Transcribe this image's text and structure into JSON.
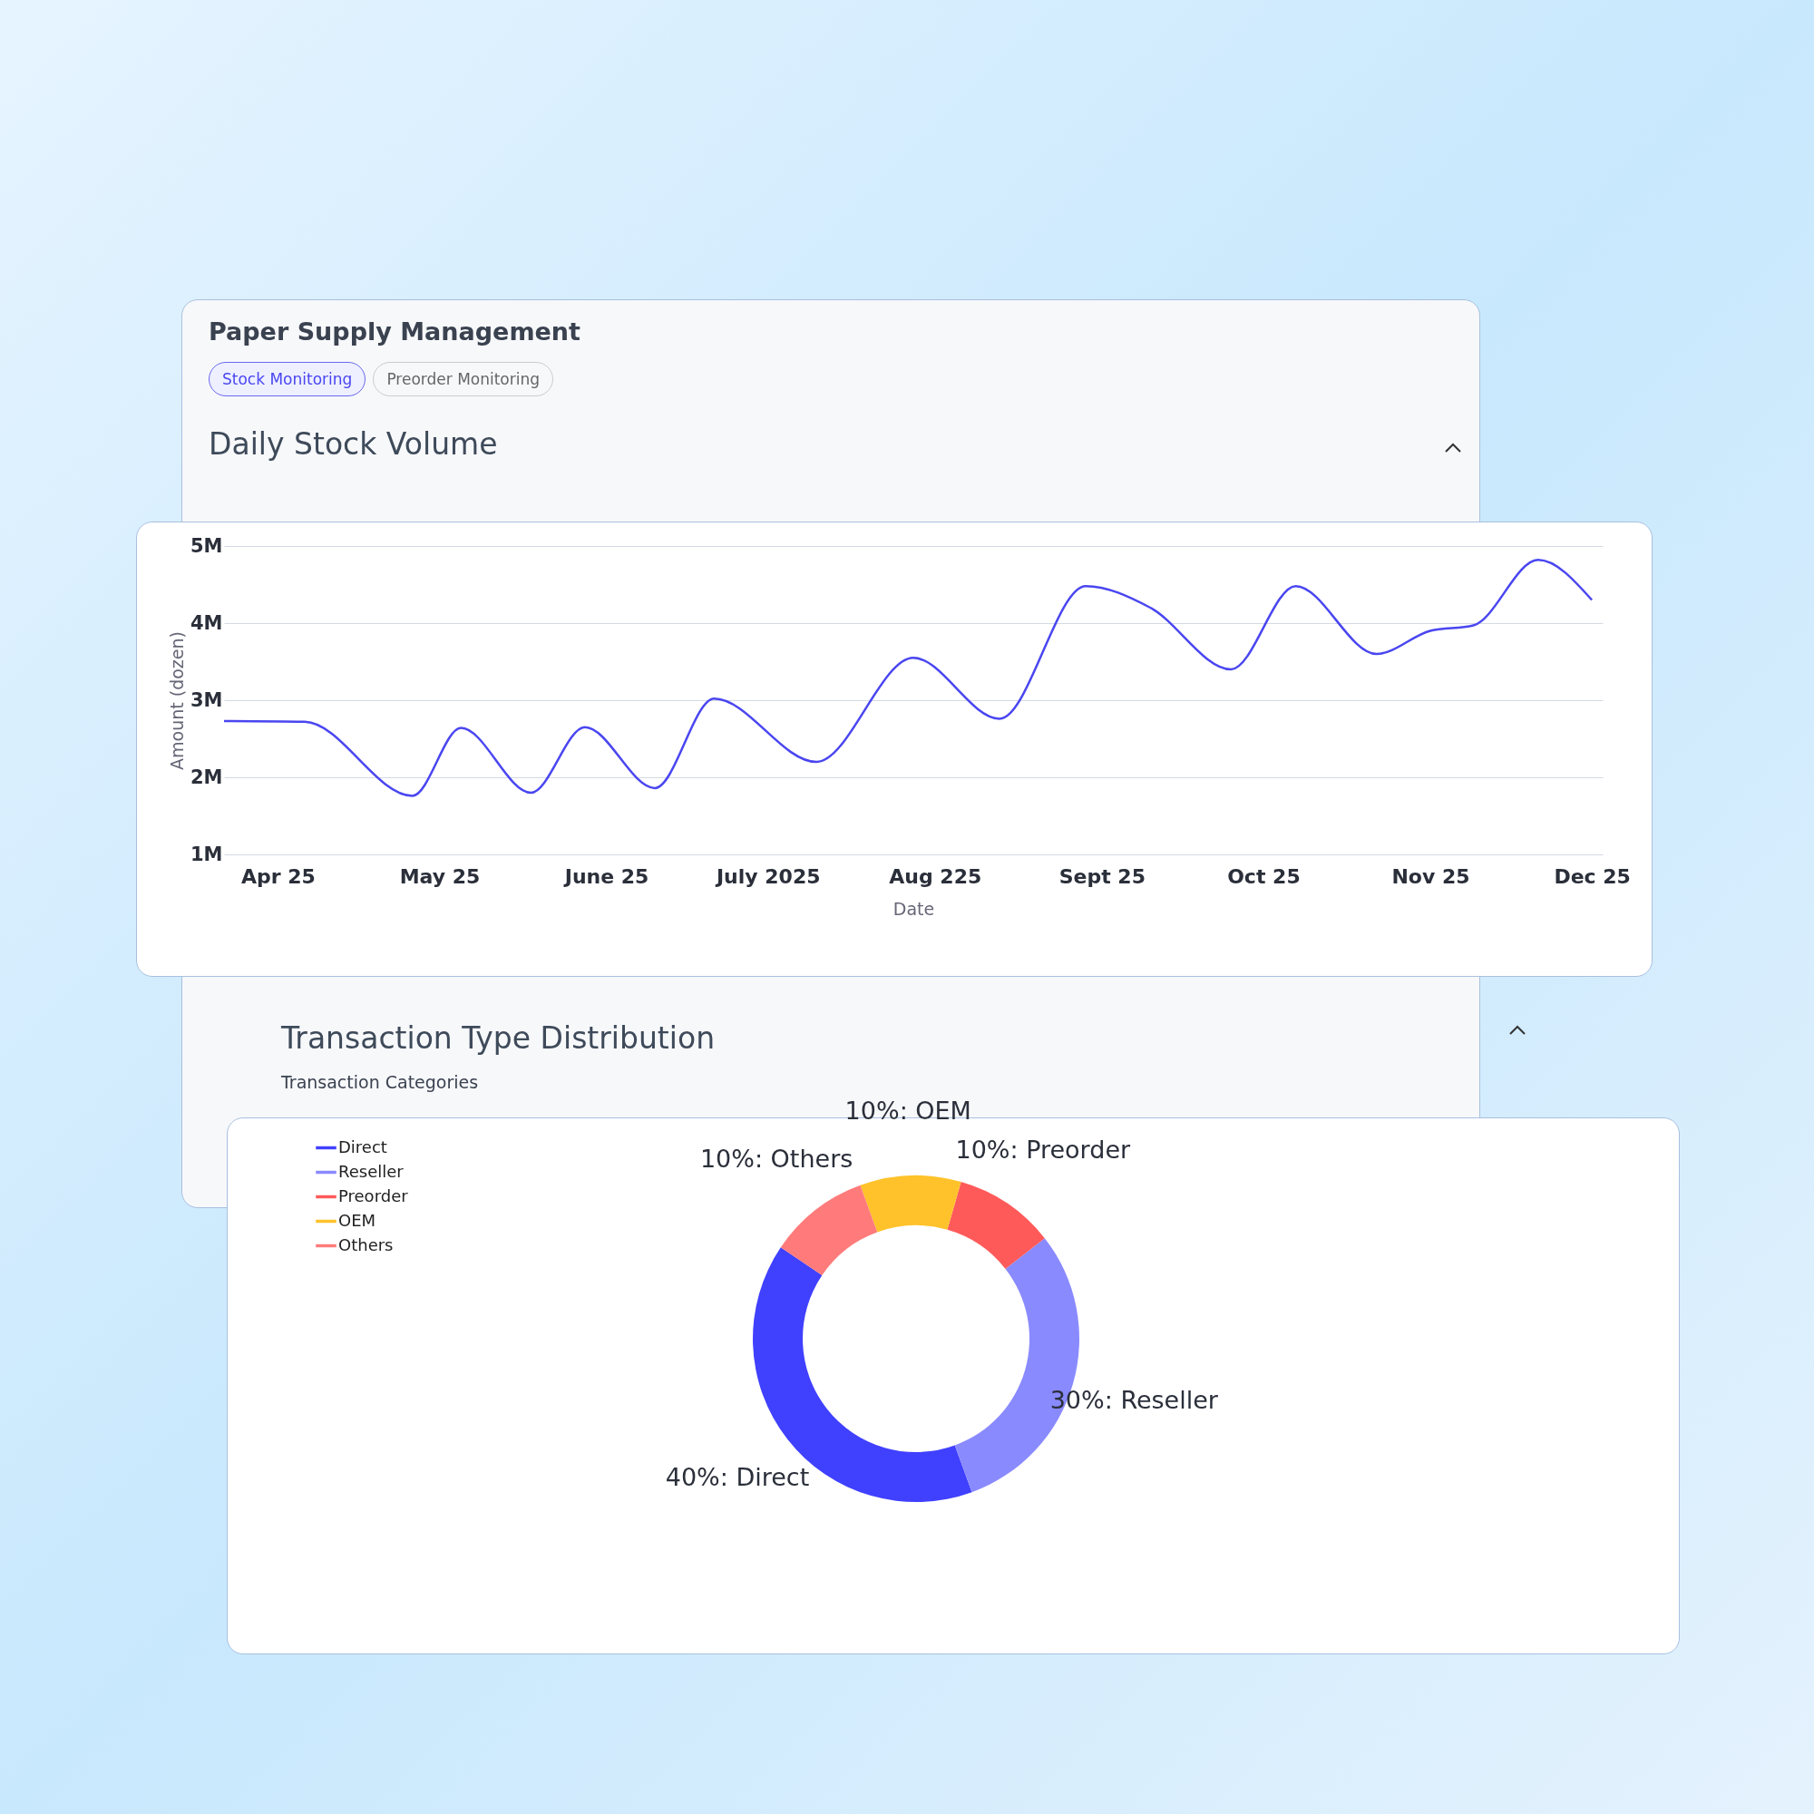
{
  "chart_data": [
    {
      "type": "line",
      "title": "Daily Stock Volume",
      "xlabel": "Date",
      "ylabel": "Amount (dozen)",
      "annotations": [
        "Paper Supply Management",
        "Stock Monitoring",
        "Preorder Monitoring"
      ],
      "series": [
        {
          "color": "#4a46f0",
          "x": [
            "2025-03-22",
            "2025-04-06",
            "2025-04-26",
            "2025-05-05",
            "2025-05-18",
            "2025-05-28",
            "2025-06-10",
            "2025-06-21",
            "2025-07-10",
            "2025-07-28",
            "2025-08-13",
            "2025-08-29",
            "2025-09-10",
            "2025-09-25",
            "2025-10-07",
            "2025-10-22",
            "2025-11-01",
            "2025-11-09",
            "2025-11-21",
            "2025-12-01"
          ],
          "values": [
            2.73,
            2.72,
            1.76,
            2.64,
            1.8,
            2.65,
            1.86,
            3.02,
            2.2,
            3.55,
            2.76,
            4.48,
            4.2,
            3.4,
            4.48,
            3.6,
            3.9,
            3.97,
            4.82,
            4.3
          ]
        }
      ],
      "xlim": [
        "2025-03-22",
        "2025-12-03"
      ],
      "xticks": [
        {
          "value": "2025-04",
          "label": "Apr 25"
        },
        {
          "value": "2025-05",
          "label": "May 25"
        },
        {
          "value": "2025-06",
          "label": "June 25"
        },
        {
          "value": "2025-07",
          "label": "July 2025"
        },
        {
          "value": "2025-08",
          "label": "Aug 225"
        },
        {
          "value": "2025-09",
          "label": "Sept 25"
        },
        {
          "value": "2025-10",
          "label": "Oct 25"
        },
        {
          "value": "2025-11",
          "label": "Nov 25"
        },
        {
          "value": "2025-12",
          "label": "Dec 25"
        }
      ],
      "ylim": [
        1,
        5
      ],
      "yticks": [
        {
          "value": 1,
          "label": "1M"
        },
        {
          "value": 2,
          "label": "2M"
        },
        {
          "value": 3,
          "label": "3M"
        },
        {
          "value": 4,
          "label": "4M"
        },
        {
          "value": 5,
          "label": "5M"
        }
      ],
      "grid": "y",
      "marker": "none",
      "line_style": "solid"
    },
    {
      "type": "donut",
      "title": "Transaction Type Distribution",
      "subtitle": "Transaction Categories",
      "categories": [
        "Direct",
        "Reseller",
        "Preorder",
        "OEM",
        "Others"
      ],
      "values": [
        40,
        30,
        10,
        10,
        10
      ],
      "colors": [
        "#4040ff",
        "#8a8aff",
        "#ff5a5a",
        "#ffc22a",
        "#ff7b7b"
      ],
      "value_labels": [
        "40%: Direct",
        "30%: Reseller",
        "10%: Preorder",
        "10%: OEM",
        "10%: Others"
      ],
      "legend": "top left"
    }
  ]
}
